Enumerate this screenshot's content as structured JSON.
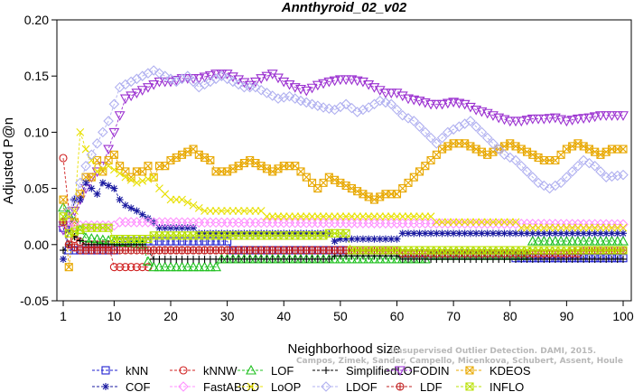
{
  "chart_data": {
    "type": "line",
    "title": "Annthyroid_02_v02",
    "xlabel": "Neighborhood size",
    "ylabel": "Adjusted P@n",
    "xlim": [
      1,
      100
    ],
    "ylim": [
      -0.05,
      0.2
    ],
    "x_ticks": [
      1,
      10,
      20,
      30,
      40,
      50,
      60,
      70,
      80,
      90,
      100
    ],
    "y_ticks": [
      "-0.05",
      "0.00",
      "0.05",
      "0.10",
      "0.15",
      "0.20"
    ],
    "grid": false,
    "legend_placement": "bottom",
    "watermark_lines": [
      "Unsupervised Outlier Detection. DAMI, 2015.",
      "Campos, Zimek, Sander, Campello, Micenkova, Schubert, Assent, Houle"
    ],
    "series": [
      {
        "name": "kNN",
        "color": "#2020d0",
        "marker": "square",
        "points": [
          [
            1,
            0.015
          ],
          [
            2,
            -0.005
          ],
          [
            5,
            -0.005
          ],
          [
            10,
            -0.005
          ],
          [
            11,
            0.003
          ],
          [
            30,
            0.003
          ],
          [
            31,
            -0.005
          ],
          [
            60,
            -0.005
          ],
          [
            61,
            -0.008
          ],
          [
            80,
            -0.008
          ],
          [
            81,
            -0.012
          ],
          [
            100,
            -0.012
          ]
        ]
      },
      {
        "name": "kNNW",
        "color": "#d02020",
        "marker": "circle",
        "points": [
          [
            1,
            0.077
          ],
          [
            2,
            0.03
          ],
          [
            3,
            0.005
          ],
          [
            5,
            0.0
          ],
          [
            9,
            0.0
          ],
          [
            10,
            -0.02
          ],
          [
            16,
            -0.02
          ],
          [
            17,
            -0.005
          ],
          [
            60,
            -0.005
          ],
          [
            61,
            -0.008
          ],
          [
            90,
            -0.008
          ],
          [
            91,
            -0.005
          ],
          [
            100,
            -0.005
          ]
        ]
      },
      {
        "name": "LOF",
        "color": "#20c020",
        "marker": "triangle-up",
        "points": [
          [
            1,
            0.033
          ],
          [
            3,
            0.02
          ],
          [
            5,
            0.006
          ],
          [
            10,
            0.003
          ],
          [
            15,
            0.0
          ],
          [
            16,
            -0.015
          ],
          [
            17,
            -0.02
          ],
          [
            28,
            -0.02
          ],
          [
            29,
            -0.013
          ],
          [
            65,
            -0.013
          ],
          [
            66,
            -0.01
          ],
          [
            83,
            -0.01
          ],
          [
            84,
            0.003
          ],
          [
            100,
            0.003
          ]
        ]
      },
      {
        "name": "SimplifiedLOF",
        "color": "#000000",
        "marker": "plus",
        "points": [
          [
            1,
            -0.005
          ],
          [
            2,
            0.0
          ],
          [
            3,
            0.007
          ],
          [
            5,
            0.0
          ],
          [
            15,
            0.0
          ],
          [
            16,
            -0.005
          ],
          [
            17,
            -0.013
          ],
          [
            48,
            -0.013
          ],
          [
            49,
            -0.01
          ],
          [
            60,
            -0.01
          ],
          [
            61,
            -0.013
          ],
          [
            100,
            -0.013
          ]
        ]
      },
      {
        "name": "ODIN",
        "color": "#9b30d0",
        "marker": "triangle-down",
        "points": [
          [
            1,
            0.013
          ],
          [
            2,
            0.02
          ],
          [
            4,
            0.04
          ],
          [
            6,
            0.06
          ],
          [
            8,
            0.07
          ],
          [
            10,
            0.1
          ],
          [
            12,
            0.13
          ],
          [
            14,
            0.135
          ],
          [
            16,
            0.14
          ],
          [
            18,
            0.145
          ],
          [
            20,
            0.145
          ],
          [
            22,
            0.148
          ],
          [
            25,
            0.148
          ],
          [
            28,
            0.152
          ],
          [
            30,
            0.152
          ],
          [
            32,
            0.147
          ],
          [
            34,
            0.142
          ],
          [
            36,
            0.148
          ],
          [
            38,
            0.152
          ],
          [
            40,
            0.145
          ],
          [
            42,
            0.14
          ],
          [
            44,
            0.137
          ],
          [
            46,
            0.142
          ],
          [
            48,
            0.145
          ],
          [
            50,
            0.147
          ],
          [
            52,
            0.147
          ],
          [
            54,
            0.145
          ],
          [
            56,
            0.14
          ],
          [
            58,
            0.135
          ],
          [
            60,
            0.135
          ],
          [
            62,
            0.13
          ],
          [
            64,
            0.128
          ],
          [
            66,
            0.125
          ],
          [
            68,
            0.125
          ],
          [
            70,
            0.127
          ],
          [
            72,
            0.125
          ],
          [
            74,
            0.12
          ],
          [
            76,
            0.117
          ],
          [
            78,
            0.113
          ],
          [
            80,
            0.11
          ],
          [
            82,
            0.11
          ],
          [
            84,
            0.112
          ],
          [
            86,
            0.112
          ],
          [
            88,
            0.113
          ],
          [
            90,
            0.11
          ],
          [
            92,
            0.112
          ],
          [
            94,
            0.113
          ],
          [
            96,
            0.115
          ],
          [
            98,
            0.115
          ],
          [
            100,
            0.115
          ]
        ]
      },
      {
        "name": "KDEOS",
        "color": "#e8a800",
        "marker": "boxed-x",
        "points": [
          [
            1,
            0.04
          ],
          [
            2,
            -0.02
          ],
          [
            3,
            0.02
          ],
          [
            4,
            0.045
          ],
          [
            5,
            0.06
          ],
          [
            6,
            0.06
          ],
          [
            7,
            0.075
          ],
          [
            8,
            0.065
          ],
          [
            9,
            0.075
          ],
          [
            10,
            0.08
          ],
          [
            11,
            0.07
          ],
          [
            12,
            0.065
          ],
          [
            13,
            0.06
          ],
          [
            14,
            0.065
          ],
          [
            15,
            0.065
          ],
          [
            16,
            0.07
          ],
          [
            17,
            0.06
          ],
          [
            18,
            0.07
          ],
          [
            19,
            0.07
          ],
          [
            20,
            0.075
          ],
          [
            22,
            0.08
          ],
          [
            24,
            0.085
          ],
          [
            25,
            0.08
          ],
          [
            27,
            0.075
          ],
          [
            28,
            0.065
          ],
          [
            30,
            0.065
          ],
          [
            32,
            0.07
          ],
          [
            34,
            0.075
          ],
          [
            36,
            0.07
          ],
          [
            38,
            0.065
          ],
          [
            40,
            0.07
          ],
          [
            42,
            0.07
          ],
          [
            44,
            0.06
          ],
          [
            46,
            0.05
          ],
          [
            48,
            0.06
          ],
          [
            50,
            0.055
          ],
          [
            52,
            0.05
          ],
          [
            54,
            0.045
          ],
          [
            56,
            0.04
          ],
          [
            58,
            0.045
          ],
          [
            60,
            0.045
          ],
          [
            62,
            0.055
          ],
          [
            64,
            0.065
          ],
          [
            66,
            0.075
          ],
          [
            68,
            0.085
          ],
          [
            70,
            0.09
          ],
          [
            72,
            0.09
          ],
          [
            74,
            0.085
          ],
          [
            76,
            0.08
          ],
          [
            78,
            0.085
          ],
          [
            80,
            0.09
          ],
          [
            82,
            0.085
          ],
          [
            84,
            0.08
          ],
          [
            86,
            0.075
          ],
          [
            88,
            0.075
          ],
          [
            90,
            0.085
          ],
          [
            92,
            0.09
          ],
          [
            94,
            0.085
          ],
          [
            96,
            0.08
          ],
          [
            98,
            0.085
          ],
          [
            100,
            0.085
          ]
        ]
      },
      {
        "name": "COF",
        "color": "#1a1aa0",
        "marker": "asterisk",
        "points": [
          [
            1,
            -0.013
          ],
          [
            2,
            0.013
          ],
          [
            3,
            0.04
          ],
          [
            4,
            0.04
          ],
          [
            5,
            0.055
          ],
          [
            6,
            0.05
          ],
          [
            7,
            0.045
          ],
          [
            8,
            0.055
          ],
          [
            10,
            0.05
          ],
          [
            11,
            0.04
          ],
          [
            12,
            0.035
          ],
          [
            14,
            0.03
          ],
          [
            17,
            0.02
          ],
          [
            18,
            0.015
          ],
          [
            24,
            0.015
          ],
          [
            25,
            0.01
          ],
          [
            48,
            0.01
          ],
          [
            49,
            0.003
          ],
          [
            50,
            0.005
          ],
          [
            60,
            0.005
          ],
          [
            61,
            0.01
          ],
          [
            100,
            0.01
          ]
        ]
      },
      {
        "name": "FastABOD",
        "color": "#ff90ff",
        "marker": "diamond",
        "points": [
          [
            1,
            0.02
          ],
          [
            2,
            0.017
          ],
          [
            10,
            0.017
          ],
          [
            11,
            0.02
          ],
          [
            100,
            0.018
          ]
        ]
      },
      {
        "name": "LoOP",
        "color": "#e8e000",
        "marker": "x",
        "points": [
          [
            1,
            0.02
          ],
          [
            3,
            0.03
          ],
          [
            4,
            0.1
          ],
          [
            5,
            0.085
          ],
          [
            7,
            0.065
          ],
          [
            9,
            0.07
          ],
          [
            12,
            0.06
          ],
          [
            14,
            0.055
          ],
          [
            17,
            0.06
          ],
          [
            18,
            0.05
          ],
          [
            20,
            0.04
          ],
          [
            22,
            0.04
          ],
          [
            24,
            0.035
          ],
          [
            26,
            0.03
          ],
          [
            36,
            0.03
          ],
          [
            37,
            0.025
          ],
          [
            66,
            0.025
          ],
          [
            67,
            0.02
          ],
          [
            81,
            0.02
          ],
          [
            82,
            0.015
          ],
          [
            100,
            0.015
          ]
        ]
      },
      {
        "name": "LDOF",
        "color": "#b0b0f0",
        "marker": "diamond",
        "points": [
          [
            1,
            0.02
          ],
          [
            3,
            0.04
          ],
          [
            5,
            0.07
          ],
          [
            7,
            0.09
          ],
          [
            9,
            0.11
          ],
          [
            11,
            0.14
          ],
          [
            13,
            0.145
          ],
          [
            15,
            0.15
          ],
          [
            17,
            0.155
          ],
          [
            19,
            0.15
          ],
          [
            21,
            0.145
          ],
          [
            23,
            0.15
          ],
          [
            25,
            0.14
          ],
          [
            27,
            0.145
          ],
          [
            29,
            0.15
          ],
          [
            31,
            0.145
          ],
          [
            33,
            0.14
          ],
          [
            35,
            0.14
          ],
          [
            37,
            0.135
          ],
          [
            39,
            0.13
          ],
          [
            41,
            0.132
          ],
          [
            43,
            0.128
          ],
          [
            45,
            0.125
          ],
          [
            47,
            0.122
          ],
          [
            49,
            0.12
          ],
          [
            51,
            0.125
          ],
          [
            53,
            0.118
          ],
          [
            55,
            0.122
          ],
          [
            57,
            0.128
          ],
          [
            59,
            0.125
          ],
          [
            61,
            0.115
          ],
          [
            63,
            0.11
          ],
          [
            65,
            0.1
          ],
          [
            67,
            0.09
          ],
          [
            69,
            0.1
          ],
          [
            71,
            0.105
          ],
          [
            73,
            0.11
          ],
          [
            75,
            0.1
          ],
          [
            77,
            0.09
          ],
          [
            79,
            0.08
          ],
          [
            81,
            0.075
          ],
          [
            83,
            0.065
          ],
          [
            85,
            0.055
          ],
          [
            87,
            0.05
          ],
          [
            89,
            0.055
          ],
          [
            91,
            0.065
          ],
          [
            93,
            0.075
          ],
          [
            95,
            0.07
          ],
          [
            97,
            0.06
          ],
          [
            100,
            0.062
          ]
        ]
      },
      {
        "name": "LDF",
        "color": "#c02020",
        "marker": "circle-plus",
        "points": [
          [
            1,
            0.02
          ],
          [
            2,
            0.0
          ],
          [
            4,
            -0.005
          ],
          [
            60,
            -0.005
          ],
          [
            61,
            -0.008
          ],
          [
            92,
            -0.008
          ],
          [
            93,
            -0.005
          ],
          [
            100,
            -0.005
          ]
        ]
      },
      {
        "name": "INFLO",
        "color": "#b8e000",
        "marker": "boxed-x",
        "points": [
          [
            1,
            0.025
          ],
          [
            2,
            0.01
          ],
          [
            5,
            0.015
          ],
          [
            9,
            0.015
          ],
          [
            10,
            0.005
          ],
          [
            16,
            0.005
          ],
          [
            17,
            0.008
          ],
          [
            47,
            0.008
          ],
          [
            48,
            0.01
          ],
          [
            51,
            0.01
          ],
          [
            52,
            -0.005
          ],
          [
            100,
            -0.005
          ]
        ]
      }
    ]
  }
}
